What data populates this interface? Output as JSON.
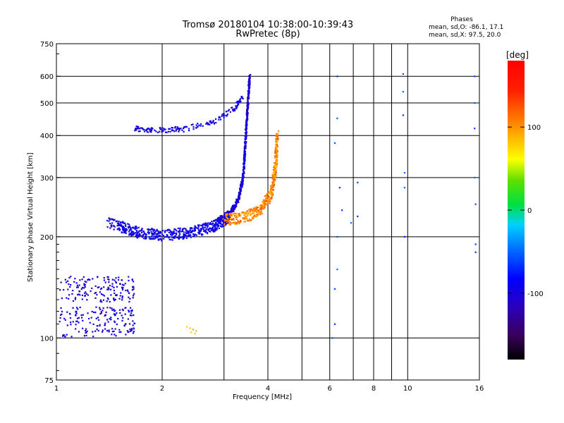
{
  "header": {
    "title": "Tromsø 20180104 10:38:00-10:39:43",
    "subtitle": "RwPretec (8p)"
  },
  "phase_panel": {
    "title": "Phases",
    "line_o": "mean, sd,O: -86.1, 17.1",
    "line_x": "mean, sd,X:  97.5, 20.0"
  },
  "colorbar": {
    "unit": "[deg]",
    "ticks": [
      {
        "v": 100,
        "label": "100"
      },
      {
        "v": 0,
        "label": "0"
      },
      {
        "v": -100,
        "label": "-100"
      }
    ],
    "range": [
      -180,
      180
    ]
  },
  "chart_data": {
    "type": "scatter",
    "xlabel": "Frequency [MHz]",
    "ylabel": "Stationary phase Virtual Height [km]",
    "xscale": "log",
    "yscale": "log",
    "xlim": [
      1,
      16
    ],
    "ylim": [
      75,
      750
    ],
    "xticks": [
      {
        "v": 1,
        "label": "1"
      },
      {
        "v": 2,
        "label": "2"
      },
      {
        "v": 4,
        "label": "4"
      },
      {
        "v": 6,
        "label": "6"
      },
      {
        "v": 8,
        "label": "8"
      },
      {
        "v": 10,
        "label": "10"
      },
      {
        "v": 16,
        "label": "16"
      }
    ],
    "xgrid": [
      2,
      4,
      6,
      8,
      10,
      16
    ],
    "xminor": [
      3,
      5,
      7,
      9
    ],
    "yticks": [
      {
        "v": 75,
        "label": "75"
      },
      {
        "v": 100,
        "label": "100"
      },
      {
        "v": 200,
        "label": "200"
      },
      {
        "v": 300,
        "label": "300"
      },
      {
        "v": 400,
        "label": "400"
      },
      {
        "v": 500,
        "label": "500"
      },
      {
        "v": 600,
        "label": "600"
      },
      {
        "v": 750,
        "label": "750"
      }
    ],
    "ygrid": [
      100,
      200,
      300,
      400,
      500,
      600
    ],
    "color_by": "phase_deg",
    "series": [
      {
        "trace": "o_low_150km",
        "f_range": [
          1.02,
          1.67
        ],
        "h": [
          148,
          140,
          132
        ],
        "phase": -105,
        "n": 160
      },
      {
        "trace": "o_low_120km",
        "f_range": [
          1.02,
          1.68
        ],
        "h": [
          120,
          112,
          104
        ],
        "phase": -100,
        "n": 170
      },
      {
        "trace": "o_e_layer_220km",
        "f": [
          1.4,
          1.7,
          2.0,
          2.4,
          2.8,
          3.0,
          3.1
        ],
        "h": [
          220,
          206,
          202,
          206,
          215,
          225,
          230
        ],
        "phase": -95,
        "spread": 0.03,
        "n": 700
      },
      {
        "trace": "o_f2_cusp",
        "f": [
          3.1,
          3.3,
          3.4,
          3.45,
          3.5,
          3.55
        ],
        "h": [
          230,
          260,
          300,
          380,
          480,
          600
        ],
        "phase": -100,
        "spread": 0.015,
        "n": 500
      },
      {
        "trace": "o_multihop_420km",
        "f": [
          1.67,
          1.9,
          2.3,
          2.8,
          3.2,
          3.4
        ],
        "h": [
          420,
          415,
          418,
          440,
          480,
          520
        ],
        "phase": -95,
        "spread": 0.015,
        "n": 180
      },
      {
        "trace": "x_f2_cusp",
        "f": [
          3.0,
          3.4,
          3.8,
          4.1,
          4.2,
          4.25
        ],
        "h": [
          225,
          228,
          240,
          270,
          320,
          400
        ],
        "phase": 105,
        "spread": 0.03,
        "n": 450
      },
      {
        "points": [
          [
            2.4,
            107
          ],
          [
            2.45,
            106
          ],
          [
            2.5,
            105
          ],
          [
            2.35,
            108
          ],
          [
            2.42,
            104
          ],
          [
            2.48,
            103
          ]
        ],
        "phase": 90,
        "trace": "x_sporadic_100km"
      },
      {
        "points": [
          [
            6.1,
            100
          ],
          [
            6.2,
            110
          ],
          [
            6.2,
            140
          ],
          [
            6.3,
            160
          ],
          [
            6.3,
            200
          ],
          [
            6.5,
            240
          ],
          [
            6.4,
            280
          ],
          [
            6.9,
            220
          ],
          [
            7.2,
            290
          ],
          [
            7.2,
            230
          ],
          [
            6.2,
            380
          ],
          [
            6.3,
            450
          ],
          [
            6.3,
            600
          ],
          [
            9.7,
            610
          ],
          [
            9.7,
            540
          ],
          [
            9.7,
            460
          ],
          [
            9.8,
            310
          ],
          [
            9.8,
            280
          ],
          [
            9.8,
            200
          ],
          [
            15.5,
            600
          ],
          [
            15.5,
            500
          ],
          [
            15.5,
            420
          ],
          [
            15.5,
            300
          ],
          [
            15.6,
            250
          ],
          [
            15.6,
            180
          ],
          [
            15.6,
            190
          ]
        ],
        "phase": -60,
        "trace": "scattered_high_f"
      }
    ]
  }
}
